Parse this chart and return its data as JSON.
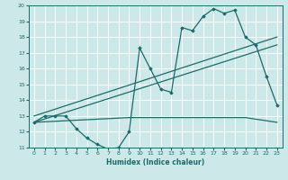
{
  "xlabel": "Humidex (Indice chaleur)",
  "xlim": [
    -0.5,
    23.5
  ],
  "ylim": [
    11,
    20
  ],
  "yticks": [
    11,
    12,
    13,
    14,
    15,
    16,
    17,
    18,
    19,
    20
  ],
  "xticks": [
    0,
    1,
    2,
    3,
    4,
    5,
    6,
    7,
    8,
    9,
    10,
    11,
    12,
    13,
    14,
    15,
    16,
    17,
    18,
    19,
    20,
    21,
    22,
    23
  ],
  "bg_color": "#cde8e8",
  "grid_color": "#b0d0d0",
  "line_color": "#1a6b6b",
  "curve1_x": [
    0,
    1,
    2,
    3,
    4,
    5,
    6,
    7,
    8,
    9,
    10,
    11,
    12,
    13,
    14,
    15,
    16,
    17,
    18,
    19,
    20,
    21,
    22,
    23
  ],
  "curve1_y": [
    12.6,
    13.0,
    13.0,
    13.0,
    12.2,
    11.6,
    11.2,
    10.9,
    11.0,
    12.0,
    17.3,
    16.0,
    14.7,
    14.5,
    18.6,
    18.4,
    19.3,
    19.8,
    19.5,
    19.7,
    18.0,
    17.5,
    15.5,
    13.7
  ],
  "line1_x": [
    0,
    23
  ],
  "line1_y": [
    13.0,
    18.0
  ],
  "line2_x": [
    0,
    23
  ],
  "line2_y": [
    12.6,
    17.5
  ],
  "line3_x": [
    0,
    9,
    20,
    23
  ],
  "line3_y": [
    12.6,
    12.9,
    12.9,
    12.6
  ]
}
